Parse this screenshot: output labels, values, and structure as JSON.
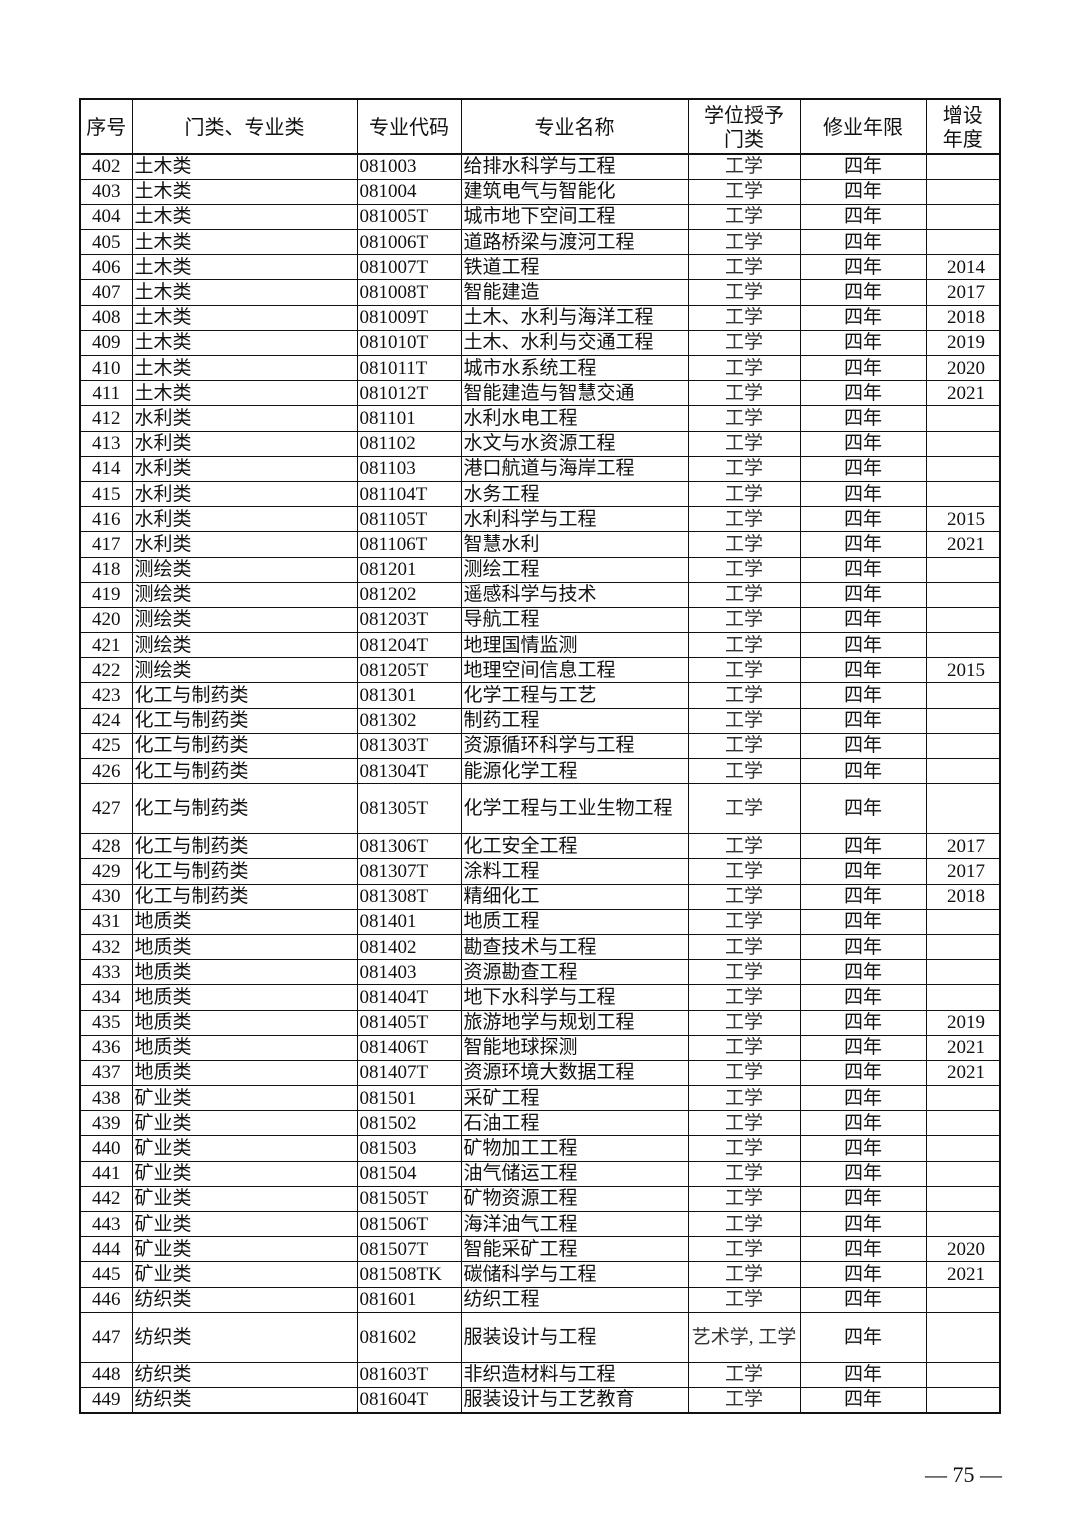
{
  "table": {
    "headers": [
      "序号",
      "门类、专业类",
      "专业代码",
      "专业名称",
      "学位授予门类",
      "修业年限",
      "增设年度"
    ],
    "rows": [
      [
        "402",
        "土木类",
        "081003",
        "给排水科学与工程",
        "工学",
        "四年",
        ""
      ],
      [
        "403",
        "土木类",
        "081004",
        "建筑电气与智能化",
        "工学",
        "四年",
        ""
      ],
      [
        "404",
        "土木类",
        "081005T",
        "城市地下空间工程",
        "工学",
        "四年",
        ""
      ],
      [
        "405",
        "土木类",
        "081006T",
        "道路桥梁与渡河工程",
        "工学",
        "四年",
        ""
      ],
      [
        "406",
        "土木类",
        "081007T",
        "铁道工程",
        "工学",
        "四年",
        "2014"
      ],
      [
        "407",
        "土木类",
        "081008T",
        "智能建造",
        "工学",
        "四年",
        "2017"
      ],
      [
        "408",
        "土木类",
        "081009T",
        "土木、水利与海洋工程",
        "工学",
        "四年",
        "2018"
      ],
      [
        "409",
        "土木类",
        "081010T",
        "土木、水利与交通工程",
        "工学",
        "四年",
        "2019"
      ],
      [
        "410",
        "土木类",
        "081011T",
        "城市水系统工程",
        "工学",
        "四年",
        "2020"
      ],
      [
        "411",
        "土木类",
        "081012T",
        "智能建造与智慧交通",
        "工学",
        "四年",
        "2021"
      ],
      [
        "412",
        "水利类",
        "081101",
        "水利水电工程",
        "工学",
        "四年",
        ""
      ],
      [
        "413",
        "水利类",
        "081102",
        "水文与水资源工程",
        "工学",
        "四年",
        ""
      ],
      [
        "414",
        "水利类",
        "081103",
        "港口航道与海岸工程",
        "工学",
        "四年",
        ""
      ],
      [
        "415",
        "水利类",
        "081104T",
        "水务工程",
        "工学",
        "四年",
        ""
      ],
      [
        "416",
        "水利类",
        "081105T",
        "水利科学与工程",
        "工学",
        "四年",
        "2015"
      ],
      [
        "417",
        "水利类",
        "081106T",
        "智慧水利",
        "工学",
        "四年",
        "2021"
      ],
      [
        "418",
        "测绘类",
        "081201",
        "测绘工程",
        "工学",
        "四年",
        ""
      ],
      [
        "419",
        "测绘类",
        "081202",
        "遥感科学与技术",
        "工学",
        "四年",
        ""
      ],
      [
        "420",
        "测绘类",
        "081203T",
        "导航工程",
        "工学",
        "四年",
        ""
      ],
      [
        "421",
        "测绘类",
        "081204T",
        "地理国情监测",
        "工学",
        "四年",
        ""
      ],
      [
        "422",
        "测绘类",
        "081205T",
        "地理空间信息工程",
        "工学",
        "四年",
        "2015"
      ],
      [
        "423",
        "化工与制药类",
        "081301",
        "化学工程与工艺",
        "工学",
        "四年",
        ""
      ],
      [
        "424",
        "化工与制药类",
        "081302",
        "制药工程",
        "工学",
        "四年",
        ""
      ],
      [
        "425",
        "化工与制药类",
        "081303T",
        "资源循环科学与工程",
        "工学",
        "四年",
        ""
      ],
      [
        "426",
        "化工与制药类",
        "081304T",
        "能源化学工程",
        "工学",
        "四年",
        ""
      ],
      [
        "427",
        "化工与制药类",
        "081305T",
        "化学工程与工业生物工程",
        "工学",
        "四年",
        ""
      ],
      [
        "428",
        "化工与制药类",
        "081306T",
        "化工安全工程",
        "工学",
        "四年",
        "2017"
      ],
      [
        "429",
        "化工与制药类",
        "081307T",
        "涂料工程",
        "工学",
        "四年",
        "2017"
      ],
      [
        "430",
        "化工与制药类",
        "081308T",
        "精细化工",
        "工学",
        "四年",
        "2018"
      ],
      [
        "431",
        "地质类",
        "081401",
        "地质工程",
        "工学",
        "四年",
        ""
      ],
      [
        "432",
        "地质类",
        "081402",
        "勘查技术与工程",
        "工学",
        "四年",
        ""
      ],
      [
        "433",
        "地质类",
        "081403",
        "资源勘查工程",
        "工学",
        "四年",
        ""
      ],
      [
        "434",
        "地质类",
        "081404T",
        "地下水科学与工程",
        "工学",
        "四年",
        ""
      ],
      [
        "435",
        "地质类",
        "081405T",
        "旅游地学与规划工程",
        "工学",
        "四年",
        "2019"
      ],
      [
        "436",
        "地质类",
        "081406T",
        "智能地球探测",
        "工学",
        "四年",
        "2021"
      ],
      [
        "437",
        "地质类",
        "081407T",
        "资源环境大数据工程",
        "工学",
        "四年",
        "2021"
      ],
      [
        "438",
        "矿业类",
        "081501",
        "采矿工程",
        "工学",
        "四年",
        ""
      ],
      [
        "439",
        "矿业类",
        "081502",
        "石油工程",
        "工学",
        "四年",
        ""
      ],
      [
        "440",
        "矿业类",
        "081503",
        "矿物加工工程",
        "工学",
        "四年",
        ""
      ],
      [
        "441",
        "矿业类",
        "081504",
        "油气储运工程",
        "工学",
        "四年",
        ""
      ],
      [
        "442",
        "矿业类",
        "081505T",
        "矿物资源工程",
        "工学",
        "四年",
        ""
      ],
      [
        "443",
        "矿业类",
        "081506T",
        "海洋油气工程",
        "工学",
        "四年",
        ""
      ],
      [
        "444",
        "矿业类",
        "081507T",
        "智能采矿工程",
        "工学",
        "四年",
        "2020"
      ],
      [
        "445",
        "矿业类",
        "081508TK",
        "碳储科学与工程",
        "工学",
        "四年",
        "2021"
      ],
      [
        "446",
        "纺织类",
        "081601",
        "纺织工程",
        "工学",
        "四年",
        ""
      ],
      [
        "447",
        "纺织类",
        "081602",
        "服装设计与工程",
        "艺术学, 工学",
        "四年",
        ""
      ],
      [
        "448",
        "纺织类",
        "081603T",
        "非织造材料与工程",
        "工学",
        "四年",
        ""
      ],
      [
        "449",
        "纺织类",
        "081604T",
        "服装设计与工艺教育",
        "工学",
        "四年",
        ""
      ]
    ]
  },
  "page_number": "— 75 —"
}
